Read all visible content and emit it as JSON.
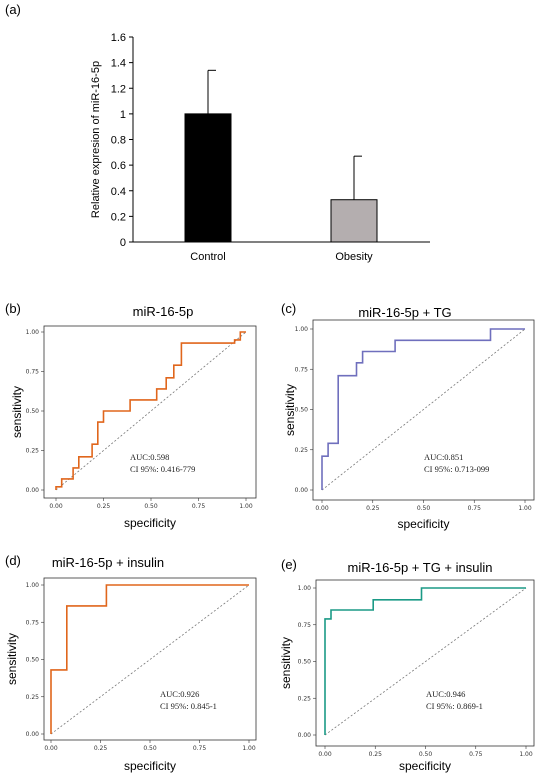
{
  "panels": {
    "a": "(a)",
    "b": "(b)",
    "c": "(c)",
    "d": "(d)",
    "e": "(e)"
  },
  "chart_data": [
    {
      "id": "a",
      "type": "bar",
      "ylabel": "Relative expresion of miR-16-5p",
      "ylim": [
        0,
        1.6
      ],
      "yticks": [
        "0",
        "0.2",
        "0.4",
        "0.6",
        "0.8",
        "1",
        "1.2",
        "1.4",
        "1.6"
      ],
      "categories": [
        "Control",
        "Obesity"
      ],
      "values": [
        1.0,
        0.33
      ],
      "errors": [
        0.34,
        0.34
      ],
      "colors": [
        "#000000",
        "#b4aeaf"
      ],
      "grid": false
    },
    {
      "id": "b",
      "type": "line",
      "title": "miR-16-5p",
      "xlabel": "specificity",
      "ylabel": "sensitivity",
      "xticks": [
        "0.00",
        "0.25",
        "0.50",
        "0.75",
        "1.00"
      ],
      "yticks": [
        "0.00",
        "0.25",
        "0.50",
        "0.75",
        "1.00"
      ],
      "color": "#e0661c",
      "annotations": [
        "AUC:0.598",
        "CI 95%: 0.416-779"
      ],
      "points": [
        [
          0,
          0
        ],
        [
          0,
          0.02
        ],
        [
          0.03,
          0.02
        ],
        [
          0.03,
          0.07
        ],
        [
          0.09,
          0.07
        ],
        [
          0.09,
          0.14
        ],
        [
          0.12,
          0.14
        ],
        [
          0.12,
          0.21
        ],
        [
          0.19,
          0.21
        ],
        [
          0.19,
          0.29
        ],
        [
          0.22,
          0.29
        ],
        [
          0.22,
          0.43
        ],
        [
          0.25,
          0.43
        ],
        [
          0.25,
          0.5
        ],
        [
          0.39,
          0.5
        ],
        [
          0.39,
          0.57
        ],
        [
          0.53,
          0.57
        ],
        [
          0.53,
          0.64
        ],
        [
          0.58,
          0.64
        ],
        [
          0.58,
          0.71
        ],
        [
          0.62,
          0.71
        ],
        [
          0.62,
          0.79
        ],
        [
          0.66,
          0.79
        ],
        [
          0.66,
          0.93
        ],
        [
          0.94,
          0.93
        ],
        [
          0.94,
          0.95
        ],
        [
          0.97,
          0.95
        ],
        [
          0.97,
          1.0
        ],
        [
          1.0,
          1.0
        ]
      ]
    },
    {
      "id": "c",
      "type": "line",
      "title": "miR-16-5p + TG",
      "xlabel": "specificity",
      "ylabel": "sensitivity",
      "xticks": [
        "0.00",
        "0.25",
        "0.50",
        "0.75",
        "1.00"
      ],
      "yticks": [
        "0.00",
        "0.25",
        "0.50",
        "0.75",
        "1.00"
      ],
      "color": "#6f6fbd",
      "annotations": [
        "AUC:0.851",
        "CI 95%: 0.713-099"
      ],
      "points": [
        [
          0,
          0
        ],
        [
          0,
          0.21
        ],
        [
          0.03,
          0.21
        ],
        [
          0.03,
          0.29
        ],
        [
          0.08,
          0.29
        ],
        [
          0.08,
          0.71
        ],
        [
          0.17,
          0.71
        ],
        [
          0.17,
          0.79
        ],
        [
          0.2,
          0.79
        ],
        [
          0.2,
          0.86
        ],
        [
          0.36,
          0.86
        ],
        [
          0.36,
          0.93
        ],
        [
          0.83,
          0.93
        ],
        [
          0.83,
          1.0
        ],
        [
          1.0,
          1.0
        ]
      ]
    },
    {
      "id": "d",
      "type": "line",
      "title": "miR-16-5p + insulin",
      "xlabel": "specificity",
      "ylabel": "sensitivity",
      "xticks": [
        "0.00",
        "0.25",
        "0.50",
        "0.75",
        "1.00"
      ],
      "yticks": [
        "0.00",
        "0.25",
        "0.50",
        "0.75",
        "1.00"
      ],
      "color": "#e0661c",
      "annotations": [
        "AUC:0.926",
        "CI 95%: 0.845-1"
      ],
      "points": [
        [
          0,
          0
        ],
        [
          0,
          0.43
        ],
        [
          0.08,
          0.43
        ],
        [
          0.08,
          0.86
        ],
        [
          0.28,
          0.86
        ],
        [
          0.28,
          1.0
        ],
        [
          1.0,
          1.0
        ]
      ]
    },
    {
      "id": "e",
      "type": "line",
      "title": "miR-16-5p + TG + insulin",
      "xlabel": "specificity",
      "ylabel": "sensitivity",
      "xticks": [
        "0.00",
        "0.25",
        "0.50",
        "0.75",
        "1.00"
      ],
      "yticks": [
        "0.00",
        "0.25",
        "0.50",
        "0.75",
        "1.00"
      ],
      "color": "#1b9a86",
      "annotations": [
        "AUC:0.946",
        "CI 95%: 0.869-1"
      ],
      "points": [
        [
          0,
          0
        ],
        [
          0,
          0.79
        ],
        [
          0.03,
          0.79
        ],
        [
          0.03,
          0.85
        ],
        [
          0.24,
          0.85
        ],
        [
          0.24,
          0.92
        ],
        [
          0.48,
          0.92
        ],
        [
          0.48,
          1.0
        ],
        [
          1.0,
          1.0
        ]
      ]
    }
  ]
}
